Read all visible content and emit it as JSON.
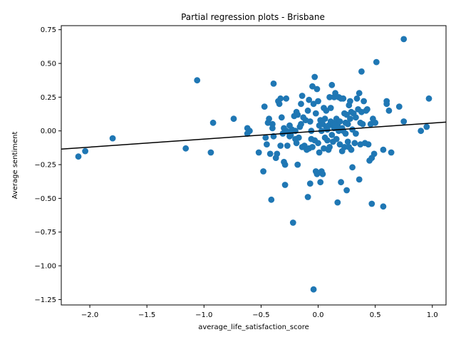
{
  "chart_data": {
    "type": "scatter",
    "title": "Partial regression plots - Brisbane",
    "xlabel": "average_life_satisfaction_score",
    "ylabel": "Average sentiment",
    "xlim": [
      -2.25,
      1.12
    ],
    "ylim": [
      -1.29,
      0.78
    ],
    "xticks": [
      -2.0,
      -1.5,
      -1.0,
      -0.5,
      0.0,
      0.5,
      1.0
    ],
    "xtick_labels": [
      "−2.0",
      "−1.5",
      "−1.0",
      "−0.5",
      "0.0",
      "0.5",
      "1.0"
    ],
    "yticks": [
      0.75,
      0.5,
      0.25,
      0.0,
      -0.25,
      -0.5,
      -0.75,
      -1.0,
      -1.25
    ],
    "ytick_labels": [
      "0.75",
      "0.50",
      "0.25",
      "0.00",
      "−0.25",
      "−0.50",
      "−0.75",
      "−1.00",
      "−1.25"
    ],
    "grid": false,
    "point_color": "#1f77b4",
    "line_color": "#000000",
    "fit_line": {
      "x": [
        -2.25,
        1.12
      ],
      "y": [
        -0.135,
        0.065
      ]
    },
    "points": [
      [
        -2.1,
        -0.19
      ],
      [
        -2.04,
        -0.15
      ],
      [
        -1.8,
        -0.055
      ],
      [
        -1.16,
        -0.13
      ],
      [
        -1.06,
        0.375
      ],
      [
        -0.94,
        -0.16
      ],
      [
        -0.92,
        0.06
      ],
      [
        -0.74,
        0.09
      ],
      [
        -0.62,
        0.02
      ],
      [
        -0.6,
        0.0
      ],
      [
        -0.62,
        -0.02
      ],
      [
        -0.52,
        -0.16
      ],
      [
        -0.48,
        -0.3
      ],
      [
        -0.47,
        0.18
      ],
      [
        -0.46,
        -0.05
      ],
      [
        -0.45,
        -0.1
      ],
      [
        -0.44,
        0.06
      ],
      [
        -0.43,
        0.09
      ],
      [
        -0.42,
        -0.17
      ],
      [
        -0.41,
        -0.51
      ],
      [
        -0.4,
        0.05
      ],
      [
        -0.4,
        0.02
      ],
      [
        -0.39,
        0.35
      ],
      [
        -0.39,
        -0.04
      ],
      [
        -0.37,
        -0.2
      ],
      [
        -0.36,
        -0.17
      ],
      [
        -0.35,
        0.22
      ],
      [
        -0.34,
        0.2
      ],
      [
        -0.33,
        0.24
      ],
      [
        -0.33,
        -0.11
      ],
      [
        -0.32,
        0.1
      ],
      [
        -0.31,
        -0.02
      ],
      [
        -0.3,
        -0.23
      ],
      [
        -0.3,
        0.02
      ],
      [
        -0.29,
        -0.4
      ],
      [
        -0.29,
        -0.25
      ],
      [
        -0.28,
        0.24
      ],
      [
        -0.28,
        0.0
      ],
      [
        -0.27,
        -0.11
      ],
      [
        -0.26,
        -0.01
      ],
      [
        -0.25,
        0.04
      ],
      [
        -0.25,
        -0.04
      ],
      [
        -0.24,
        -0.03
      ],
      [
        -0.23,
        0.01
      ],
      [
        -0.22,
        -0.68
      ],
      [
        -0.21,
        0.11
      ],
      [
        -0.2,
        -0.06
      ],
      [
        -0.2,
        0.0
      ],
      [
        -0.19,
        -0.09
      ],
      [
        -0.19,
        0.14
      ],
      [
        -0.18,
        0.12
      ],
      [
        -0.18,
        -0.25
      ],
      [
        -0.17,
        -0.05
      ],
      [
        -0.16,
        0.03
      ],
      [
        -0.15,
        0.05
      ],
      [
        -0.15,
        0.2
      ],
      [
        -0.14,
        0.26
      ],
      [
        -0.14,
        -0.12
      ],
      [
        -0.13,
        0.1
      ],
      [
        -0.12,
        -0.11
      ],
      [
        -0.11,
        0.08
      ],
      [
        -0.1,
        -0.14
      ],
      [
        -0.09,
        -0.49
      ],
      [
        -0.09,
        0.15
      ],
      [
        -0.08,
        0.23
      ],
      [
        -0.08,
        -0.13
      ],
      [
        -0.07,
        -0.39
      ],
      [
        -0.07,
        0.07
      ],
      [
        -0.06,
        -0.06
      ],
      [
        -0.06,
        0.0
      ],
      [
        -0.05,
        0.33
      ],
      [
        -0.05,
        -0.12
      ],
      [
        -0.04,
        -1.175
      ],
      [
        -0.04,
        0.2
      ],
      [
        -0.03,
        0.4
      ],
      [
        -0.03,
        -0.07
      ],
      [
        -0.02,
        0.13
      ],
      [
        -0.02,
        -0.3
      ],
      [
        -0.01,
        -0.32
      ],
      [
        -0.01,
        0.31
      ],
      [
        0.0,
        -0.09
      ],
      [
        0.0,
        0.22
      ],
      [
        0.01,
        0.04
      ],
      [
        0.01,
        -0.16
      ],
      [
        0.02,
        -0.38
      ],
      [
        0.02,
        0.08
      ],
      [
        0.03,
        0.0
      ],
      [
        0.03,
        -0.3
      ],
      [
        0.04,
        -0.32
      ],
      [
        0.04,
        0.05
      ],
      [
        0.05,
        0.17
      ],
      [
        0.05,
        -0.13
      ],
      [
        0.06,
        0.09
      ],
      [
        0.06,
        -0.05
      ],
      [
        0.07,
        0.03
      ],
      [
        0.07,
        0.15
      ],
      [
        0.08,
        -0.07
      ],
      [
        0.08,
        0.01
      ],
      [
        0.09,
        0.04
      ],
      [
        0.09,
        -0.14
      ],
      [
        0.1,
        0.25
      ],
      [
        0.1,
        -0.12
      ],
      [
        0.11,
        0.07
      ],
      [
        0.11,
        0.17
      ],
      [
        0.12,
        -0.03
      ],
      [
        0.12,
        0.34
      ],
      [
        0.13,
        0.04
      ],
      [
        0.13,
        -0.08
      ],
      [
        0.14,
        0.25
      ],
      [
        0.14,
        0.02
      ],
      [
        0.15,
        0.06
      ],
      [
        0.15,
        0.28
      ],
      [
        0.16,
        -0.06
      ],
      [
        0.16,
        0.09
      ],
      [
        0.17,
        -0.53
      ],
      [
        0.17,
        0.04
      ],
      [
        0.18,
        0.0
      ],
      [
        0.18,
        0.25
      ],
      [
        0.19,
        -0.1
      ],
      [
        0.19,
        0.07
      ],
      [
        0.2,
        -0.38
      ],
      [
        0.2,
        0.24
      ],
      [
        0.21,
        -0.15
      ],
      [
        0.21,
        0.02
      ],
      [
        0.22,
        0.0
      ],
      [
        0.22,
        0.24
      ],
      [
        0.23,
        -0.12
      ],
      [
        0.23,
        0.13
      ],
      [
        0.24,
        -0.02
      ],
      [
        0.24,
        0.06
      ],
      [
        0.25,
        -0.44
      ],
      [
        0.25,
        0.12
      ],
      [
        0.26,
        -0.08
      ],
      [
        0.26,
        0.05
      ],
      [
        0.27,
        -0.12
      ],
      [
        0.27,
        0.19
      ],
      [
        0.28,
        0.09
      ],
      [
        0.28,
        0.22
      ],
      [
        0.29,
        -0.14
      ],
      [
        0.29,
        0.14
      ],
      [
        0.3,
        0.01
      ],
      [
        0.3,
        -0.27
      ],
      [
        0.31,
        0.13
      ],
      [
        0.32,
        -0.09
      ],
      [
        0.33,
        0.1
      ],
      [
        0.33,
        -0.02
      ],
      [
        0.34,
        0.24
      ],
      [
        0.35,
        0.16
      ],
      [
        0.36,
        -0.36
      ],
      [
        0.36,
        0.28
      ],
      [
        0.37,
        0.06
      ],
      [
        0.37,
        -0.1
      ],
      [
        0.38,
        0.44
      ],
      [
        0.38,
        0.14
      ],
      [
        0.39,
        0.05
      ],
      [
        0.4,
        0.22
      ],
      [
        0.41,
        -0.09
      ],
      [
        0.42,
        0.15
      ],
      [
        0.43,
        0.16
      ],
      [
        0.44,
        -0.1
      ],
      [
        0.45,
        -0.22
      ],
      [
        0.46,
        0.05
      ],
      [
        0.47,
        -0.54
      ],
      [
        0.47,
        -0.2
      ],
      [
        0.48,
        0.09
      ],
      [
        0.49,
        -0.17
      ],
      [
        0.5,
        0.06
      ],
      [
        0.51,
        0.51
      ],
      [
        0.57,
        -0.56
      ],
      [
        0.57,
        -0.14
      ],
      [
        0.6,
        0.22
      ],
      [
        0.6,
        0.2
      ],
      [
        0.62,
        0.15
      ],
      [
        0.64,
        -0.16
      ],
      [
        0.71,
        0.18
      ],
      [
        0.75,
        0.68
      ],
      [
        0.75,
        0.07
      ],
      [
        0.9,
        0.0
      ],
      [
        0.95,
        0.03
      ],
      [
        0.97,
        0.24
      ]
    ]
  }
}
